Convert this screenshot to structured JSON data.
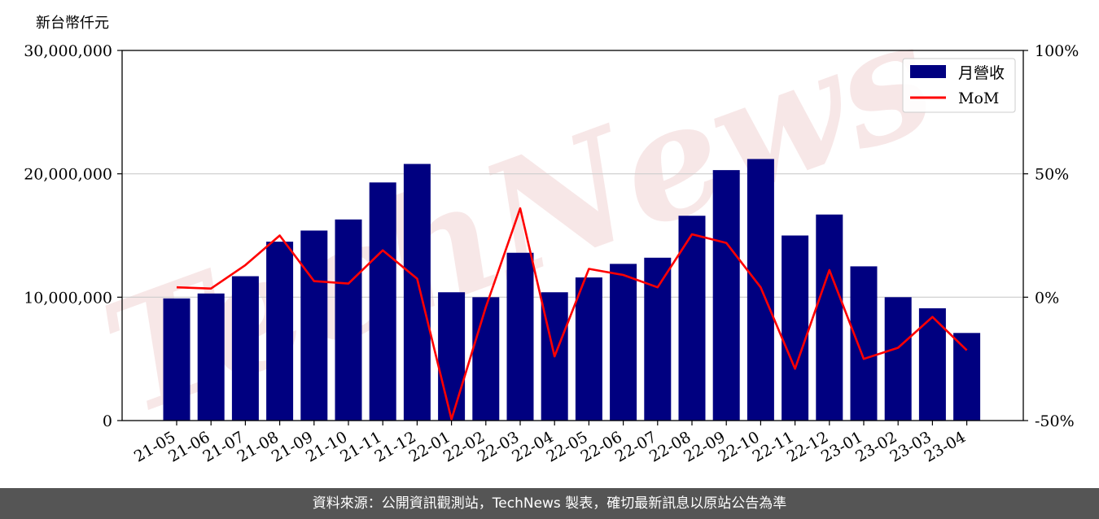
{
  "unit_label": "新台幣仟元",
  "footer_text": "資料來源：公開資訊觀測站，TechNews 製表，確切最新訊息以原站公告為準",
  "watermark": "TechNews",
  "colors": {
    "bar": "#000080",
    "line": "#ff0000",
    "grid": "#cccccc",
    "watermark": "#f2d4d4"
  },
  "chart_data": {
    "type": "bar",
    "categories": [
      "21-05",
      "21-06",
      "21-07",
      "21-08",
      "21-09",
      "21-10",
      "21-11",
      "21-12",
      "22-01",
      "22-02",
      "22-03",
      "22-04",
      "22-05",
      "22-06",
      "22-07",
      "22-08",
      "22-09",
      "22-10",
      "22-11",
      "22-12",
      "23-01",
      "23-02",
      "23-03",
      "23-04"
    ],
    "series": [
      {
        "name": "月營收",
        "type": "bar",
        "axis": "left",
        "values": [
          9900000,
          10300000,
          11700000,
          14500000,
          15400000,
          16300000,
          19300000,
          20800000,
          10400000,
          10000000,
          13600000,
          10400000,
          11600000,
          12700000,
          13200000,
          16600000,
          20300000,
          21200000,
          15000000,
          16700000,
          12500000,
          10000000,
          9100000,
          7100000
        ]
      },
      {
        "name": "MoM",
        "type": "line",
        "axis": "right",
        "values": [
          4,
          3.5,
          13,
          25,
          6.5,
          5.5,
          19,
          7.5,
          -49.5,
          -4,
          36,
          -24,
          11.5,
          9,
          4,
          25.5,
          22,
          4,
          -29,
          11,
          -25,
          -20.5,
          -8,
          -21.5
        ]
      }
    ],
    "ylim": [
      0,
      30000000
    ],
    "yticks": [
      "0",
      "10,000,000",
      "20,000,000",
      "30,000,000"
    ],
    "y2lim": [
      -50,
      100
    ],
    "y2ticks": [
      "-50%",
      "0%",
      "50%",
      "100%"
    ],
    "grid": "horizontal",
    "legend_position": "top-right"
  }
}
